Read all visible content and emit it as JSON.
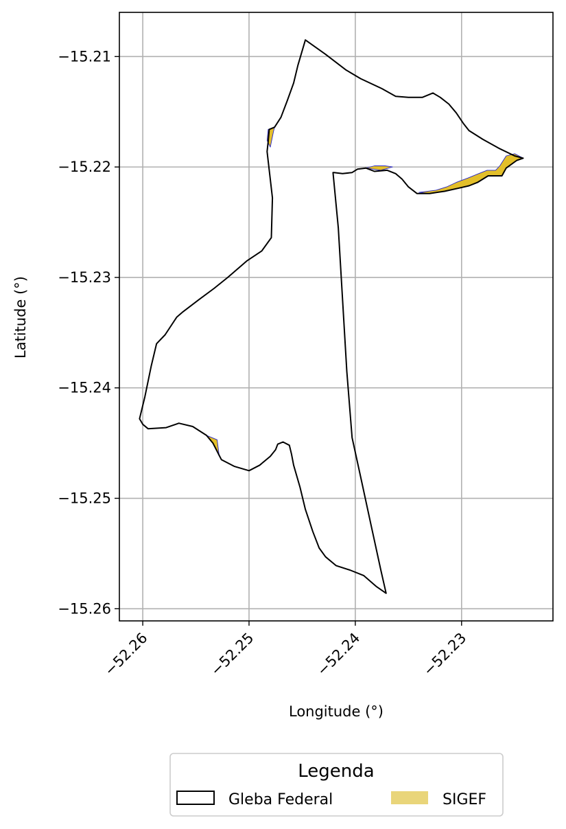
{
  "chart_data": {
    "type": "map",
    "xlabel": "Longitude (°)",
    "ylabel": "Latitude (°)",
    "xlim": [
      -52.2622,
      -52.2214
    ],
    "ylim": [
      -15.2611,
      -15.206
    ],
    "x_ticks": [
      -52.26,
      -52.25,
      -52.24,
      -52.23
    ],
    "x_tick_labels": [
      "−52.26",
      "−52.25",
      "−52.24",
      "−52.23"
    ],
    "y_ticks": [
      -15.21,
      -15.22,
      -15.23,
      -15.24,
      -15.25,
      -15.26
    ],
    "y_tick_labels": [
      "−15.21",
      "−15.22",
      "−15.23",
      "−15.24",
      "−15.25",
      "−15.26"
    ],
    "grid": true,
    "colors": {
      "gleba_edge": "#000000",
      "sigef_fill": "#e3bf2a",
      "sigef_edge": "#2323c8",
      "legend_sigef_swatch": "#e9d57a",
      "grid": "#b0b0b0"
    },
    "legend": {
      "title": "Legenda",
      "placement": "bottom-center-outside",
      "entries": [
        {
          "label": "Gleba Federal",
          "style": "outline"
        },
        {
          "label": "SIGEF",
          "style": "fill"
        }
      ]
    },
    "layers": {
      "gleba_federal": [
        [
          -52.2483,
          -15.2186
        ],
        [
          -52.2482,
          -15.2177
        ],
        [
          -52.2481,
          -15.2166
        ],
        [
          -52.2476,
          -15.2164
        ],
        [
          -52.247,
          -15.2155
        ],
        [
          -52.2464,
          -15.214
        ],
        [
          -52.2458,
          -15.2124
        ],
        [
          -52.2454,
          -15.2108
        ],
        [
          -52.2447,
          -15.2085
        ],
        [
          -52.2428,
          -15.2098
        ],
        [
          -52.2409,
          -15.2112
        ],
        [
          -52.2395,
          -15.212
        ],
        [
          -52.2375,
          -15.2129
        ],
        [
          -52.2362,
          -15.2136
        ],
        [
          -52.235,
          -15.2137
        ],
        [
          -52.2337,
          -15.2137
        ],
        [
          -52.2327,
          -15.2133
        ],
        [
          -52.232,
          -15.2137
        ],
        [
          -52.2312,
          -15.2143
        ],
        [
          -52.2305,
          -15.2151
        ],
        [
          -52.2298,
          -15.2161
        ],
        [
          -52.2293,
          -15.2167
        ],
        [
          -52.228,
          -15.2175
        ],
        [
          -52.2265,
          -15.2183
        ],
        [
          -52.225,
          -15.219
        ],
        [
          -52.2242,
          -15.2192
        ],
        [
          -52.2248,
          -15.2194
        ],
        [
          -52.2258,
          -15.2201
        ],
        [
          -52.2262,
          -15.2208
        ],
        [
          -52.2275,
          -15.2208
        ],
        [
          -52.2285,
          -15.2214
        ],
        [
          -52.2293,
          -15.2217
        ],
        [
          -52.2302,
          -15.2219
        ],
        [
          -52.2316,
          -15.2222
        ],
        [
          -52.233,
          -15.2224
        ],
        [
          -52.2342,
          -15.2224
        ],
        [
          -52.235,
          -15.2218
        ],
        [
          -52.2356,
          -15.2211
        ],
        [
          -52.2362,
          -15.2206
        ],
        [
          -52.237,
          -15.2203
        ],
        [
          -52.2382,
          -15.2204
        ],
        [
          -52.239,
          -15.2201
        ],
        [
          -52.2398,
          -15.2202
        ],
        [
          -52.2403,
          -15.2205
        ],
        [
          -52.2412,
          -15.2206
        ],
        [
          -52.242,
          -15.2205
        ],
        [
          -52.2421,
          -15.2205
        ],
        [
          -52.2416,
          -15.2255
        ],
        [
          -52.2412,
          -15.232
        ],
        [
          -52.2408,
          -15.2385
        ],
        [
          -52.2403,
          -15.2445
        ],
        [
          -52.2394,
          -15.2485
        ],
        [
          -52.2385,
          -15.2525
        ],
        [
          -52.2376,
          -15.2565
        ],
        [
          -52.2371,
          -15.2586
        ],
        [
          -52.238,
          -15.258
        ],
        [
          -52.2392,
          -15.257
        ],
        [
          -52.2405,
          -15.2565
        ],
        [
          -52.2418,
          -15.2561
        ],
        [
          -52.2428,
          -15.2553
        ],
        [
          -52.2434,
          -15.2545
        ],
        [
          -52.244,
          -15.253
        ],
        [
          -52.2447,
          -15.251
        ],
        [
          -52.2452,
          -15.249
        ],
        [
          -52.2458,
          -15.247
        ],
        [
          -52.246,
          -15.246
        ],
        [
          -52.2462,
          -15.2452
        ],
        [
          -52.2468,
          -15.2449
        ],
        [
          -52.2473,
          -15.2451
        ],
        [
          -52.2475,
          -15.2456
        ],
        [
          -52.248,
          -15.2462
        ],
        [
          -52.249,
          -15.247
        ],
        [
          -52.25,
          -15.2475
        ],
        [
          -52.2514,
          -15.2471
        ],
        [
          -52.2526,
          -15.2465
        ],
        [
          -52.2534,
          -15.245
        ],
        [
          -52.254,
          -15.2443
        ],
        [
          -52.2553,
          -15.2435
        ],
        [
          -52.2566,
          -15.2432
        ],
        [
          -52.2578,
          -15.2436
        ],
        [
          -52.2595,
          -15.2437
        ],
        [
          -52.26,
          -15.2433
        ],
        [
          -52.2603,
          -15.2428
        ],
        [
          -52.2598,
          -15.2408
        ],
        [
          -52.2592,
          -15.238
        ],
        [
          -52.2587,
          -15.236
        ],
        [
          -52.2579,
          -15.2352
        ],
        [
          -52.2568,
          -15.2336
        ],
        [
          -52.2562,
          -15.2331
        ],
        [
          -52.2547,
          -15.232
        ],
        [
          -52.2533,
          -15.231
        ],
        [
          -52.252,
          -15.23
        ],
        [
          -52.2502,
          -15.2285
        ],
        [
          -52.2488,
          -15.2276
        ],
        [
          -52.2479,
          -15.2264
        ],
        [
          -52.2478,
          -15.2228
        ],
        [
          -52.2483,
          -15.2186
        ]
      ],
      "sigef": [
        [
          [
            -52.2242,
            -15.2192
          ],
          [
            -52.225,
            -15.2188
          ],
          [
            -52.2258,
            -15.219
          ],
          [
            -52.2264,
            -15.2199
          ],
          [
            -52.2268,
            -15.2203
          ],
          [
            -52.2276,
            -15.2203
          ],
          [
            -52.2284,
            -15.2206
          ],
          [
            -52.2294,
            -15.221
          ],
          [
            -52.2305,
            -15.2214
          ],
          [
            -52.2314,
            -15.2218
          ],
          [
            -52.2324,
            -15.2221
          ],
          [
            -52.234,
            -15.2223
          ],
          [
            -52.233,
            -15.2224
          ],
          [
            -52.2316,
            -15.2222
          ],
          [
            -52.2302,
            -15.2219
          ],
          [
            -52.2293,
            -15.2217
          ],
          [
            -52.2285,
            -15.2214
          ],
          [
            -52.2275,
            -15.2208
          ],
          [
            -52.2262,
            -15.2208
          ],
          [
            -52.2258,
            -15.2201
          ],
          [
            -52.2248,
            -15.2194
          ]
        ],
        [
          [
            -52.2382,
            -15.2199
          ],
          [
            -52.2372,
            -15.2199
          ],
          [
            -52.2365,
            -15.22
          ],
          [
            -52.2376,
            -15.2203
          ],
          [
            -52.239,
            -15.2201
          ]
        ],
        [
          [
            -52.248,
            -15.2182
          ],
          [
            -52.2477,
            -15.2168
          ],
          [
            -52.2476,
            -15.2164
          ],
          [
            -52.2482,
            -15.2166
          ],
          [
            -52.2483,
            -15.2176
          ]
        ],
        [
          [
            -52.254,
            -15.2443
          ],
          [
            -52.253,
            -15.2447
          ],
          [
            -52.2528,
            -15.2462
          ],
          [
            -52.2534,
            -15.245
          ]
        ]
      ]
    }
  }
}
